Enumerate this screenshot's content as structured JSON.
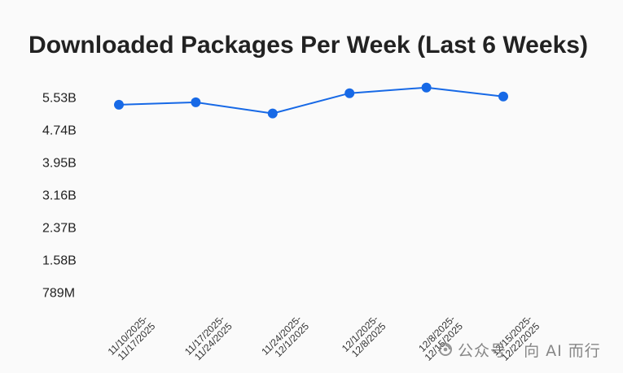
{
  "chart_data": {
    "type": "line",
    "title": "Downloaded Packages Per Week (Last 6 Weeks)",
    "categories": [
      "11/10/2025-11/17/2025",
      "11/17/2025-11/24/2025",
      "11/24/2025-12/1/2025",
      "12/1/2025-12/8/2025",
      "12/8/2025-12/15/2025",
      "12/15/2025-12/22/2025"
    ],
    "series": [
      {
        "values": [
          5350000000,
          5410000000,
          5140000000,
          5630000000,
          5770000000,
          5550000000
        ],
        "color": "#1769e6"
      }
    ],
    "yticks": [
      {
        "value": 789000000,
        "label": "789M"
      },
      {
        "value": 1580000000,
        "label": "1.58B"
      },
      {
        "value": 2370000000,
        "label": "2.37B"
      },
      {
        "value": 3160000000,
        "label": "3.16B"
      },
      {
        "value": 3950000000,
        "label": "3.95B"
      },
      {
        "value": 4740000000,
        "label": "4.74B"
      },
      {
        "value": 5530000000,
        "label": "5.53B"
      }
    ],
    "ylim": [
      0,
      6000000000
    ],
    "grid": false,
    "legend": "none"
  },
  "watermark": {
    "text": "公众号 · 向 AI 而行",
    "icon": "wechat-official-account-icon"
  },
  "colors": {
    "background": "#fafafa",
    "text": "#222222",
    "watermark": "#7a7a7a"
  }
}
